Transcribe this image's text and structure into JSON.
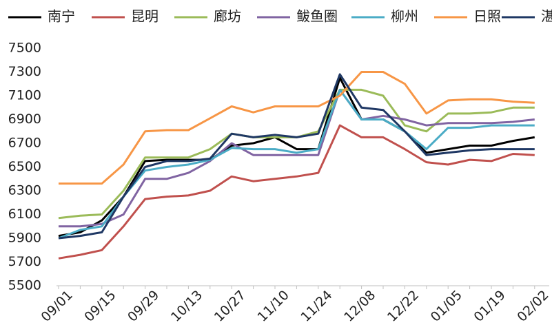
{
  "chart_data": {
    "type": "line",
    "categories": [
      "09/01",
      null,
      "09/15",
      null,
      "09/29",
      null,
      "10/13",
      null,
      "10/27",
      null,
      "11/10",
      null,
      "11/24",
      null,
      "12/08",
      null,
      "12/22",
      null,
      "01/05",
      null,
      "01/19",
      null,
      "02/02"
    ],
    "series": [
      {
        "name": "南宁",
        "color": "#000000",
        "values": [
          5920,
          5950,
          6050,
          6250,
          6550,
          6560,
          6560,
          6560,
          6680,
          6700,
          6750,
          6650,
          6650,
          7250,
          6900,
          6900,
          6800,
          6620,
          6650,
          6680,
          6680,
          6720,
          6750
        ]
      },
      {
        "name": "昆明",
        "color": "#c0504d",
        "values": [
          5730,
          5760,
          5800,
          6000,
          6230,
          6250,
          6260,
          6300,
          6420,
          6380,
          6400,
          6420,
          6450,
          6850,
          6750,
          6750,
          6650,
          6540,
          6520,
          6560,
          6550,
          6610,
          6600
        ]
      },
      {
        "name": "廊坊",
        "color": "#9bbb59",
        "values": [
          6070,
          6090,
          6100,
          6300,
          6580,
          6580,
          6580,
          6650,
          6780,
          6750,
          6750,
          6750,
          6800,
          7150,
          7150,
          7100,
          6850,
          6800,
          6950,
          6950,
          6960,
          7000,
          7000
        ]
      },
      {
        "name": "鲅鱼圈",
        "color": "#8064a2",
        "values": [
          6000,
          6000,
          6020,
          6100,
          6400,
          6400,
          6450,
          6550,
          6700,
          6600,
          6600,
          6600,
          6600,
          7150,
          6900,
          6930,
          6900,
          6850,
          6870,
          6870,
          6870,
          6880,
          6900
        ]
      },
      {
        "name": "柳州",
        "color": "#4bacc6",
        "values": [
          5900,
          5970,
          6000,
          6250,
          6470,
          6500,
          6520,
          6560,
          6660,
          6650,
          6650,
          6620,
          6650,
          7150,
          6900,
          6900,
          6800,
          6650,
          6830,
          6830,
          6850,
          6850,
          6850
        ]
      },
      {
        "name": "日照",
        "color": "#f79646",
        "values": [
          6360,
          6360,
          6360,
          6520,
          6800,
          6810,
          6810,
          6910,
          7010,
          6960,
          7010,
          7010,
          7010,
          7100,
          7300,
          7300,
          7200,
          6950,
          7060,
          7070,
          7070,
          7050,
          7040
        ]
      },
      {
        "name": "湛江",
        "color": "#1f3864",
        "values": [
          5900,
          5920,
          5950,
          6250,
          6500,
          6550,
          6550,
          6570,
          6780,
          6750,
          6770,
          6750,
          6780,
          7280,
          7000,
          6980,
          6800,
          6600,
          6620,
          6640,
          6650,
          6650,
          6650
        ]
      }
    ],
    "ylim": [
      5500,
      7500
    ],
    "yticks": [
      5500,
      5700,
      5900,
      6100,
      6300,
      6500,
      6700,
      6900,
      7100,
      7300,
      7500
    ]
  }
}
